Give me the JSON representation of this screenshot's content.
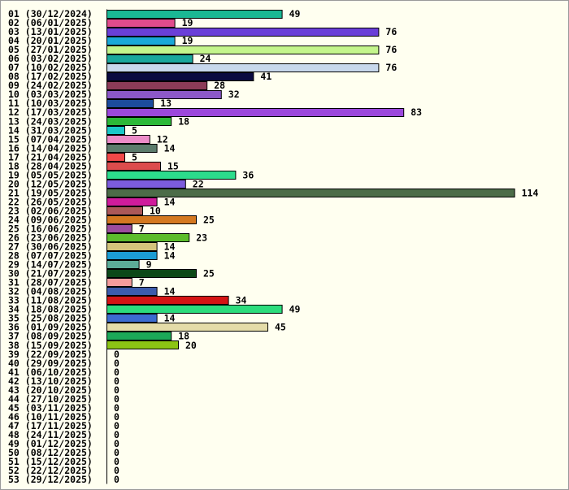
{
  "chart_data": {
    "type": "bar",
    "orientation": "horizontal",
    "title": "",
    "xlabel": "",
    "ylabel": "",
    "grid": false,
    "legend": "none",
    "categories": [
      "01 (30/12/2024)",
      "02 (06/01/2025)",
      "03 (13/01/2025)",
      "04 (20/01/2025)",
      "05 (27/01/2025)",
      "06 (03/02/2025)",
      "07 (10/02/2025)",
      "08 (17/02/2025)",
      "09 (24/02/2025)",
      "10 (03/03/2025)",
      "11 (10/03/2025)",
      "12 (17/03/2025)",
      "13 (24/03/2025)",
      "14 (31/03/2025)",
      "15 (07/04/2025)",
      "16 (14/04/2025)",
      "17 (21/04/2025)",
      "18 (28/04/2025)",
      "19 (05/05/2025)",
      "20 (12/05/2025)",
      "21 (19/05/2025)",
      "22 (26/05/2025)",
      "23 (02/06/2025)",
      "24 (09/06/2025)",
      "25 (16/06/2025)",
      "26 (23/06/2025)",
      "27 (30/06/2025)",
      "28 (07/07/2025)",
      "29 (14/07/2025)",
      "30 (21/07/2025)",
      "31 (28/07/2025)",
      "32 (04/08/2025)",
      "33 (11/08/2025)",
      "34 (18/08/2025)",
      "35 (25/08/2025)",
      "36 (01/09/2025)",
      "37 (08/09/2025)",
      "38 (15/09/2025)",
      "39 (22/09/2025)",
      "40 (29/09/2025)",
      "41 (06/10/2025)",
      "42 (13/10/2025)",
      "43 (20/10/2025)",
      "44 (27/10/2025)",
      "45 (03/11/2025)",
      "46 (10/11/2025)",
      "47 (17/11/2025)",
      "48 (24/11/2025)",
      "49 (01/12/2025)",
      "50 (08/12/2025)",
      "51 (15/12/2025)",
      "52 (22/12/2025)",
      "53 (29/12/2025)"
    ],
    "values": [
      49,
      19,
      76,
      19,
      76,
      24,
      76,
      41,
      28,
      32,
      13,
      83,
      18,
      5,
      12,
      14,
      5,
      15,
      36,
      22,
      114,
      14,
      10,
      25,
      7,
      23,
      14,
      14,
      9,
      25,
      7,
      14,
      34,
      49,
      14,
      45,
      18,
      20,
      0,
      0,
      0,
      0,
      0,
      0,
      0,
      0,
      0,
      0,
      0,
      0,
      0,
      0,
      0
    ],
    "colors": [
      "#1ab894",
      "#e04c8c",
      "#6a3fd8",
      "#1aa8d8",
      "#c4f58c",
      "#1aa89c",
      "#c8d8ec",
      "#0a0a40",
      "#8c3c58",
      "#8c58c8",
      "#1c4c9c",
      "#9c48dc",
      "#2cb838",
      "#1ac8c8",
      "#ec8cc8",
      "#5c7c6c",
      "#f04848",
      "#dc4c4c",
      "#2cdc8c",
      "#7c5cdc",
      "#4c6c48",
      "#d01c9c",
      "#ac5858",
      "#d47820",
      "#9c4c9c",
      "#5cbc2c",
      "#d4c47c",
      "#1c9cd4",
      "#5cac98",
      "#0c4818",
      "#f49c9c",
      "#3c5cac",
      "#d41414",
      "#2cdc7c",
      "#3c6cd0",
      "#e4dca8",
      "#1ca858",
      "#8cc414",
      "#0c0c0c",
      "#0c0c0c",
      "#0c0c0c",
      "#0c0c0c",
      "#0c0c0c",
      "#0c0c0c",
      "#0c0c0c",
      "#0c0c0c",
      "#0c0c0c",
      "#0c0c0c",
      "#0c0c0c",
      "#0c0c0c",
      "#0c0c0c",
      "#0c0c0c",
      "#0c0c0c"
    ]
  }
}
